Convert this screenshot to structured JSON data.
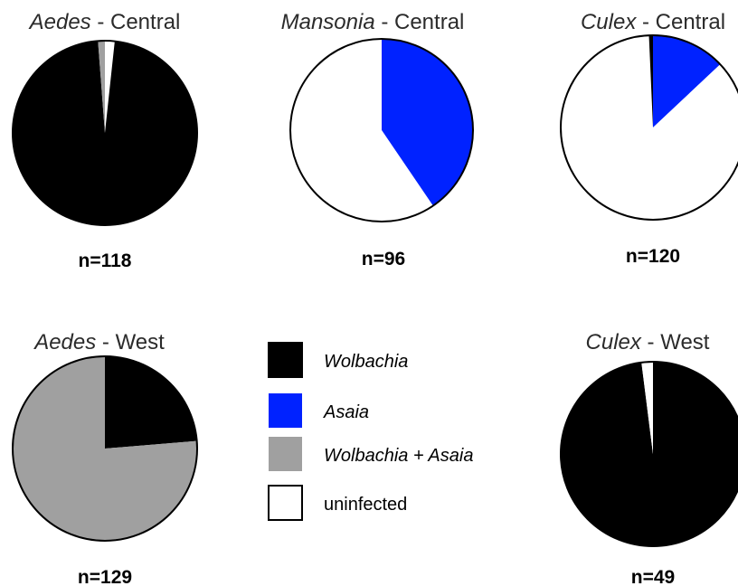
{
  "legend": [
    {
      "key": "wolbachia",
      "label": "Wolbachia",
      "italic": true,
      "color": "#000000"
    },
    {
      "key": "asaia",
      "label": "Asaia",
      "italic": true,
      "color": "#0022ff"
    },
    {
      "key": "both",
      "label": "Wolbachia + Asaia",
      "italic": true,
      "color": "#a0a0a0"
    },
    {
      "key": "uninfected",
      "label": "uninfected",
      "italic": false,
      "color": "#ffffff"
    }
  ],
  "chart_data": [
    {
      "type": "pie",
      "genus": "Aedes",
      "region": " - Central",
      "n_label": "n=118",
      "slices": [
        {
          "category": "uninfected",
          "percent": 1.7
        },
        {
          "category": "wolbachia",
          "percent": 97.1
        },
        {
          "category": "both",
          "percent": 1.2
        }
      ]
    },
    {
      "type": "pie",
      "genus": "Mansonia",
      "region": " - Central",
      "n_label": "n=96",
      "slices": [
        {
          "category": "asaia",
          "percent": 40.5
        },
        {
          "category": "uninfected",
          "percent": 59.5
        }
      ]
    },
    {
      "type": "pie",
      "genus": "Culex",
      "region": " - Central",
      "n_label": "n=120",
      "slices": [
        {
          "category": "asaia",
          "percent": 13.0
        },
        {
          "category": "uninfected",
          "percent": 86.3
        },
        {
          "category": "wolbachia",
          "percent": 0.7
        }
      ]
    },
    {
      "type": "pie",
      "genus": "Aedes",
      "region": " - West",
      "n_label": "n=129",
      "slices": [
        {
          "category": "wolbachia",
          "percent": 23.7
        },
        {
          "category": "both",
          "percent": 76.3
        }
      ]
    },
    {
      "type": "pie",
      "genus": "Culex",
      "region": " - West",
      "n_label": "n=49",
      "slices": [
        {
          "category": "wolbachia",
          "percent": 98.0
        },
        {
          "category": "uninfected",
          "percent": 2.0
        }
      ]
    }
  ]
}
